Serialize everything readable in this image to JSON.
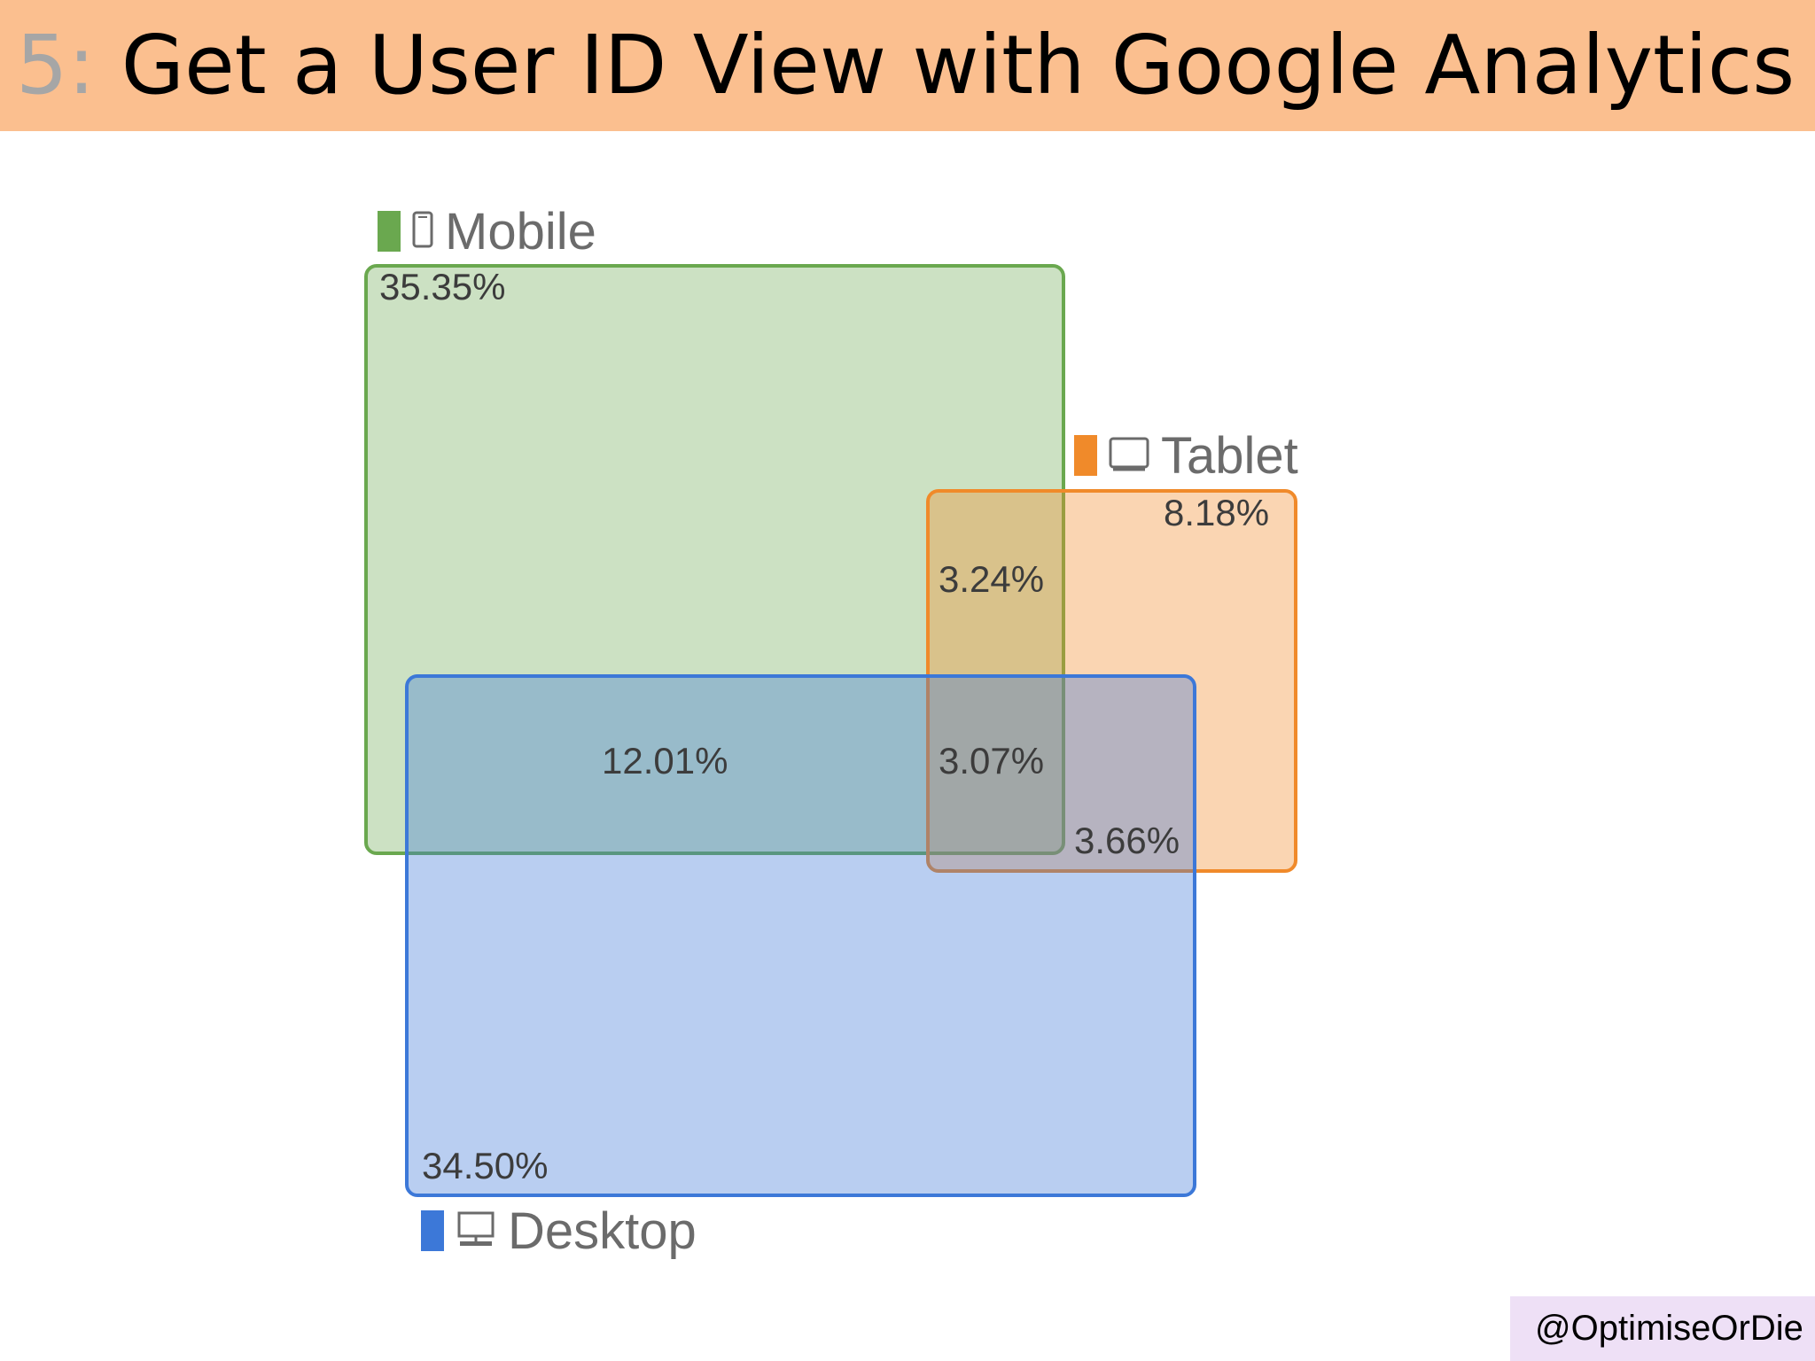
{
  "slide": {
    "number": "5:",
    "title": "Get a User ID View with Google Analytics",
    "credit": "@OptimiseOrDie"
  },
  "venn": {
    "sets": [
      {
        "name": "Mobile",
        "icon": "mobile-phone-icon",
        "color": "#6aa84f",
        "fill": "#cde0c1",
        "exclusive": "35.35%"
      },
      {
        "name": "Tablet",
        "icon": "tablet-icon",
        "color": "#f08a2a",
        "fill": "#f9d2ae",
        "exclusive": "8.18%"
      },
      {
        "name": "Desktop",
        "icon": "desktop-icon",
        "color": "#3c78d8",
        "fill": "#b4cff0",
        "exclusive": "34.50%"
      }
    ],
    "intersections": {
      "mobile_tablet": "3.24%",
      "mobile_desktop": "12.01%",
      "all_three": "3.07%",
      "tablet_desktop": "3.66%"
    }
  }
}
